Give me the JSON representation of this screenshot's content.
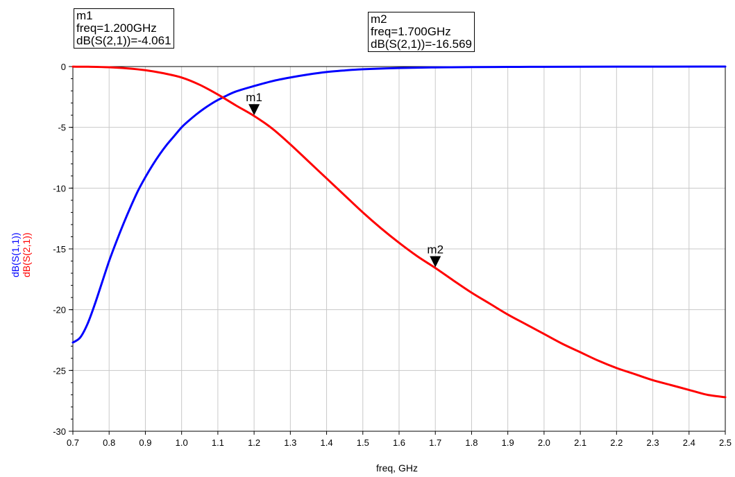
{
  "chart_data": {
    "type": "line",
    "xlabel": "freq, GHz",
    "xlim": [
      0.7,
      2.5
    ],
    "ylim": [
      -30,
      0
    ],
    "x_ticks": [
      "0.7",
      "0.8",
      "0.9",
      "1.0",
      "1.1",
      "1.2",
      "1.3",
      "1.4",
      "1.5",
      "1.6",
      "1.7",
      "1.8",
      "1.9",
      "2.0",
      "2.1",
      "2.2",
      "2.3",
      "2.4",
      "2.5"
    ],
    "y_ticks": [
      "0",
      "-5",
      "-10",
      "-15",
      "-20",
      "-25",
      "-30"
    ],
    "grid": true,
    "series": [
      {
        "name": "dB(S(1,1))",
        "color": "#0000ff",
        "x": [
          0.7,
          0.72,
          0.74,
          0.76,
          0.78,
          0.8,
          0.82,
          0.84,
          0.86,
          0.88,
          0.9,
          0.92,
          0.94,
          0.96,
          0.98,
          1.0,
          1.02,
          1.04,
          1.06,
          1.08,
          1.1,
          1.12,
          1.15,
          1.2,
          1.25,
          1.3,
          1.35,
          1.4,
          1.45,
          1.5,
          1.6,
          1.7,
          1.8,
          1.9,
          2.0,
          2.2,
          2.5
        ],
        "y": [
          -22.7,
          -22.3,
          -21.2,
          -19.6,
          -17.8,
          -16.0,
          -14.4,
          -12.9,
          -11.5,
          -10.2,
          -9.1,
          -8.1,
          -7.2,
          -6.4,
          -5.7,
          -5.0,
          -4.45,
          -3.95,
          -3.5,
          -3.1,
          -2.75,
          -2.45,
          -2.05,
          -1.6,
          -1.2,
          -0.9,
          -0.65,
          -0.45,
          -0.32,
          -0.22,
          -0.12,
          -0.07,
          -0.04,
          -0.03,
          -0.02,
          -0.01,
          0
        ]
      },
      {
        "name": "dB(S(2,1))",
        "color": "#ff0000",
        "x": [
          0.7,
          0.75,
          0.8,
          0.85,
          0.9,
          0.95,
          1.0,
          1.05,
          1.1,
          1.15,
          1.2,
          1.25,
          1.3,
          1.35,
          1.4,
          1.45,
          1.5,
          1.55,
          1.6,
          1.65,
          1.7,
          1.75,
          1.8,
          1.85,
          1.9,
          1.95,
          2.0,
          2.05,
          2.1,
          2.15,
          2.2,
          2.25,
          2.3,
          2.35,
          2.4,
          2.45,
          2.5
        ],
        "y": [
          -0.01,
          -0.02,
          -0.06,
          -0.15,
          -0.3,
          -0.55,
          -0.9,
          -1.5,
          -2.3,
          -3.2,
          -4.061,
          -5.1,
          -6.4,
          -7.8,
          -9.2,
          -10.6,
          -12.0,
          -13.3,
          -14.5,
          -15.6,
          -16.569,
          -17.6,
          -18.6,
          -19.5,
          -20.4,
          -21.2,
          -22.0,
          -22.8,
          -23.5,
          -24.2,
          -24.8,
          -25.3,
          -25.8,
          -26.2,
          -26.6,
          -27.0,
          -27.2
        ]
      }
    ],
    "markers": [
      {
        "name": "m1",
        "freq": 1.2,
        "value": -4.061,
        "series": "dB(S(2,1))",
        "line1": "m1",
        "line2": "freq=1.200GHz",
        "line3": "dB(S(2,1))=-4.061"
      },
      {
        "name": "m2",
        "freq": 1.7,
        "value": -16.569,
        "series": "dB(S(2,1))",
        "line1": "m2",
        "line2": "freq=1.700GHz",
        "line3": "dB(S(2,1))=-16.569"
      }
    ]
  }
}
